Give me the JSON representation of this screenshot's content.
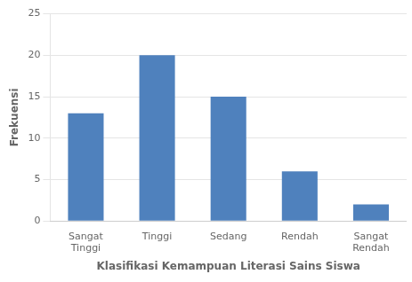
{
  "chart_data": {
    "type": "bar",
    "categories": [
      "Sangat\nTinggi",
      "Tinggi",
      "Sedang",
      "Rendah",
      "Sangat\nRendah"
    ],
    "values": [
      13,
      20,
      15,
      6,
      2
    ],
    "color": "#4F81BD",
    "xlabel": "Klasifikasi Kemampuan Literasi Sains Siswa",
    "ylabel": "Frekuensi",
    "ylim": [
      0,
      25
    ],
    "yticks": [
      0,
      5,
      10,
      15,
      20,
      25
    ],
    "grid": true
  }
}
